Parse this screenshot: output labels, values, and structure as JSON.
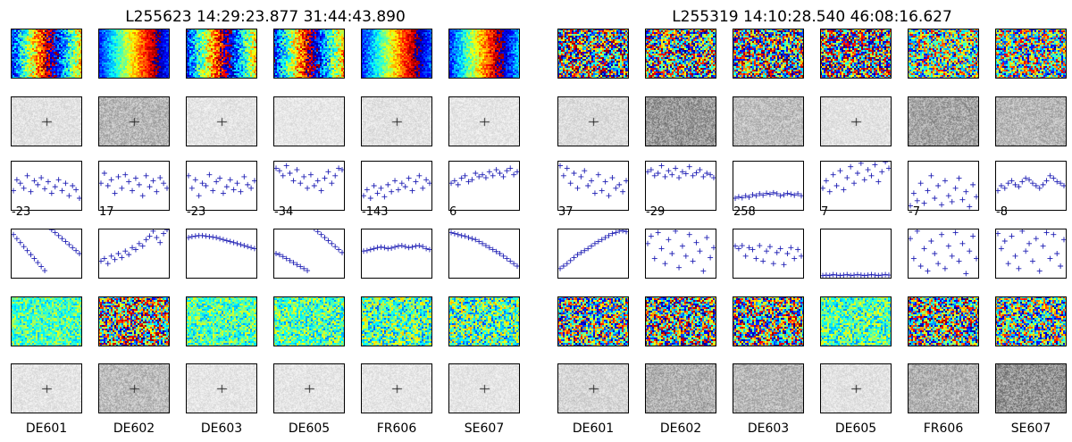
{
  "chart_data": [
    {
      "type": "panel-grid",
      "title": "L255623 14:29:23.877 31:44:43.890",
      "stations": [
        "DE601",
        "DE602",
        "DE603",
        "DE605",
        "FR606",
        "SE607"
      ],
      "rows": [
        {
          "kind": "heatmap",
          "variant": "phase-wrap",
          "bands": [
            0.55,
            0.05,
            0.55,
            0.6,
            0.1,
            0.2
          ]
        },
        {
          "kind": "greyscale",
          "noise_level": [
            0.1,
            0.45,
            0.08,
            0.06,
            0.1,
            0.07
          ],
          "center_mark": [
            true,
            true,
            true,
            false,
            true,
            true
          ]
        },
        {
          "kind": "scatter",
          "corner_labels": [
            "-23",
            "17",
            "-23",
            "-34",
            "-143",
            "6"
          ],
          "series": [
            [
              0.4,
              0.62,
              0.55,
              0.45,
              0.7,
              0.38,
              0.6,
              0.52,
              0.66,
              0.44,
              0.58,
              0.35,
              0.48,
              0.62,
              0.4,
              0.55,
              0.3,
              0.5,
              0.42,
              0.25
            ],
            [
              0.55,
              0.75,
              0.5,
              0.62,
              0.35,
              0.68,
              0.45,
              0.72,
              0.58,
              0.4,
              0.65,
              0.52,
              0.3,
              0.7,
              0.48,
              0.6,
              0.38,
              0.66,
              0.55,
              0.45
            ],
            [
              0.7,
              0.45,
              0.62,
              0.3,
              0.55,
              0.5,
              0.72,
              0.4,
              0.58,
              0.65,
              0.35,
              0.48,
              0.62,
              0.42,
              0.55,
              0.38,
              0.68,
              0.52,
              0.45,
              0.6
            ],
            [
              0.85,
              0.8,
              0.7,
              0.9,
              0.75,
              0.6,
              0.82,
              0.55,
              0.68,
              0.45,
              0.72,
              0.5,
              0.6,
              0.4,
              0.65,
              0.78,
              0.55,
              0.7,
              0.85,
              0.82
            ],
            [
              0.3,
              0.42,
              0.25,
              0.5,
              0.35,
              0.45,
              0.28,
              0.52,
              0.38,
              0.6,
              0.42,
              0.55,
              0.48,
              0.65,
              0.4,
              0.58,
              0.7,
              0.45,
              0.62,
              0.55
            ],
            [
              0.55,
              0.6,
              0.52,
              0.65,
              0.7,
              0.58,
              0.62,
              0.75,
              0.68,
              0.72,
              0.66,
              0.78,
              0.7,
              0.82,
              0.75,
              0.68,
              0.8,
              0.85,
              0.72,
              0.78
            ]
          ]
        },
        {
          "kind": "scatter",
          "corner_labels": [],
          "series": [
            [
              0.88,
              0.8,
              0.72,
              0.64,
              0.56,
              0.48,
              0.4,
              0.32,
              0.24,
              0.16,
              1.05,
              0.98,
              0.92,
              0.86,
              0.8,
              0.74,
              0.68,
              0.62,
              0.56,
              0.5
            ],
            [
              0.35,
              0.4,
              0.3,
              0.45,
              0.38,
              0.5,
              0.42,
              0.55,
              0.48,
              0.62,
              0.58,
              0.7,
              0.65,
              0.78,
              0.85,
              0.95,
              0.82,
              0.72,
              0.9,
              0.98
            ],
            [
              0.82,
              0.84,
              0.85,
              0.86,
              0.86,
              0.85,
              0.84,
              0.83,
              0.82,
              0.8,
              0.78,
              0.76,
              0.74,
              0.72,
              0.7,
              0.68,
              0.66,
              0.64,
              0.62,
              0.6
            ],
            [
              0.5,
              0.48,
              0.44,
              0.4,
              0.36,
              0.32,
              0.28,
              0.24,
              0.2,
              0.16,
              1.05,
              1.0,
              0.94,
              0.88,
              0.82,
              0.76,
              0.7,
              0.64,
              0.58,
              0.52
            ],
            [
              0.55,
              0.56,
              0.58,
              0.6,
              0.62,
              0.63,
              0.62,
              0.6,
              0.61,
              0.63,
              0.65,
              0.66,
              0.64,
              0.62,
              0.63,
              0.65,
              0.66,
              0.64,
              0.6,
              0.58
            ],
            [
              0.92,
              0.9,
              0.88,
              0.86,
              0.85,
              0.82,
              0.8,
              0.78,
              0.74,
              0.7,
              0.66,
              0.62,
              0.58,
              0.54,
              0.5,
              0.45,
              0.4,
              0.35,
              0.3,
              0.25
            ]
          ]
        },
        {
          "kind": "heatmap",
          "variant": "noise",
          "bands": [
            0.1,
            0.9,
            0.15,
            0.2,
            0.3,
            0.35
          ]
        },
        {
          "kind": "greyscale",
          "noise_level": [
            0.08,
            0.4,
            0.07,
            0.07,
            0.07,
            0.07
          ],
          "center_mark": [
            true,
            true,
            true,
            true,
            true,
            true
          ]
        }
      ]
    },
    {
      "type": "panel-grid",
      "title": "L255319 14:10:28.540 46:08:16.627",
      "stations": [
        "DE601",
        "DE602",
        "DE603",
        "DE605",
        "FR606",
        "SE607"
      ],
      "rows": [
        {
          "kind": "heatmap",
          "variant": "mixed",
          "bands": [
            0.7,
            0.6,
            0.65,
            0.9,
            0.4,
            0.45
          ]
        },
        {
          "kind": "greyscale",
          "noise_level": [
            0.15,
            0.7,
            0.4,
            0.1,
            0.6,
            0.45
          ],
          "center_mark": [
            true,
            false,
            false,
            true,
            false,
            false
          ]
        },
        {
          "kind": "scatter",
          "corner_labels": [
            "37",
            "-29",
            "258",
            "7",
            "-7",
            "-8"
          ],
          "series": [
            [
              0.9,
              0.7,
              0.85,
              0.55,
              0.75,
              0.45,
              0.68,
              0.8,
              0.5,
              0.6,
              0.35,
              0.72,
              0.4,
              0.58,
              0.3,
              0.66,
              0.45,
              0.52,
              0.38,
              0.6
            ],
            [
              0.78,
              0.82,
              0.7,
              0.75,
              0.9,
              0.68,
              0.8,
              0.72,
              0.85,
              0.66,
              0.78,
              0.74,
              0.88,
              0.7,
              0.76,
              0.82,
              0.68,
              0.75,
              0.72,
              0.66
            ],
            [
              0.25,
              0.28,
              0.26,
              0.3,
              0.27,
              0.32,
              0.3,
              0.34,
              0.31,
              0.35,
              0.33,
              0.36,
              0.34,
              0.3,
              0.32,
              0.35,
              0.33,
              0.31,
              0.34,
              0.3
            ],
            [
              0.45,
              0.6,
              0.38,
              0.72,
              0.5,
              0.8,
              0.42,
              0.66,
              0.88,
              0.55,
              0.75,
              0.95,
              0.62,
              0.82,
              0.7,
              0.92,
              0.58,
              0.78,
              0.98,
              0.85
            ],
            [
              0.1,
              0.35,
              0.2,
              0.55,
              0.15,
              0.4,
              0.7,
              0.25,
              0.5,
              0.12,
              0.6,
              0.3,
              0.18,
              0.45,
              0.65,
              0.22,
              0.38,
              0.08,
              0.52,
              0.28
            ],
            [
              0.4,
              0.5,
              0.45,
              0.55,
              0.6,
              0.52,
              0.48,
              0.58,
              0.65,
              0.62,
              0.55,
              0.5,
              0.45,
              0.52,
              0.6,
              0.7,
              0.65,
              0.58,
              0.55,
              0.5
            ]
          ]
        },
        {
          "kind": "scatter",
          "corner_labels": [],
          "series": [
            [
              0.2,
              0.25,
              0.3,
              0.36,
              0.42,
              0.48,
              0.52,
              0.56,
              0.6,
              0.65,
              0.7,
              0.74,
              0.78,
              0.82,
              0.86,
              0.9,
              0.92,
              0.95,
              0.96,
              0.94
            ],
            [
              0.7,
              0.85,
              0.4,
              0.92,
              0.6,
              0.3,
              0.78,
              0.5,
              0.95,
              0.22,
              0.65,
              0.45,
              0.88,
              0.35,
              0.72,
              0.55,
              0.15,
              0.82,
              0.42,
              0.62
            ],
            [
              0.65,
              0.6,
              0.66,
              0.45,
              0.62,
              0.58,
              0.4,
              0.66,
              0.35,
              0.55,
              0.64,
              0.3,
              0.52,
              0.6,
              0.28,
              0.5,
              0.62,
              0.4,
              0.58,
              0.45
            ],
            [
              0.06,
              0.07,
              0.06,
              0.08,
              0.07,
              0.06,
              0.07,
              0.08,
              0.06,
              0.07,
              0.08,
              0.07,
              0.06,
              0.07,
              0.08,
              0.07,
              0.06,
              0.07,
              0.08,
              0.07
            ],
            [
              0.8,
              0.4,
              0.95,
              0.25,
              0.6,
              0.15,
              0.75,
              0.5,
              0.3,
              0.88,
              0.2,
              0.65,
              0.45,
              0.92,
              0.35,
              0.7,
              0.1,
              0.55,
              0.85,
              0.4
            ],
            [
              0.9,
              0.6,
              0.75,
              0.3,
              0.85,
              0.45,
              0.2,
              0.95,
              0.55,
              0.7,
              0.35,
              0.8,
              0.15,
              0.65,
              0.92,
              0.4,
              0.88,
              0.5,
              0.25,
              0.78
            ]
          ]
        },
        {
          "kind": "heatmap",
          "variant": "noise",
          "bands": [
            0.8,
            0.9,
            0.85,
            0.2,
            0.85,
            0.75
          ]
        },
        {
          "kind": "greyscale",
          "noise_level": [
            0.2,
            0.5,
            0.45,
            0.1,
            0.5,
            0.75
          ],
          "center_mark": [
            true,
            false,
            false,
            true,
            false,
            false
          ]
        }
      ]
    }
  ],
  "colors": {
    "scatter_marker": "#1f1fb4",
    "frame": "#000000",
    "background": "#ffffff",
    "grey_base": "#eeeeee",
    "grey_dark": "#444444"
  }
}
